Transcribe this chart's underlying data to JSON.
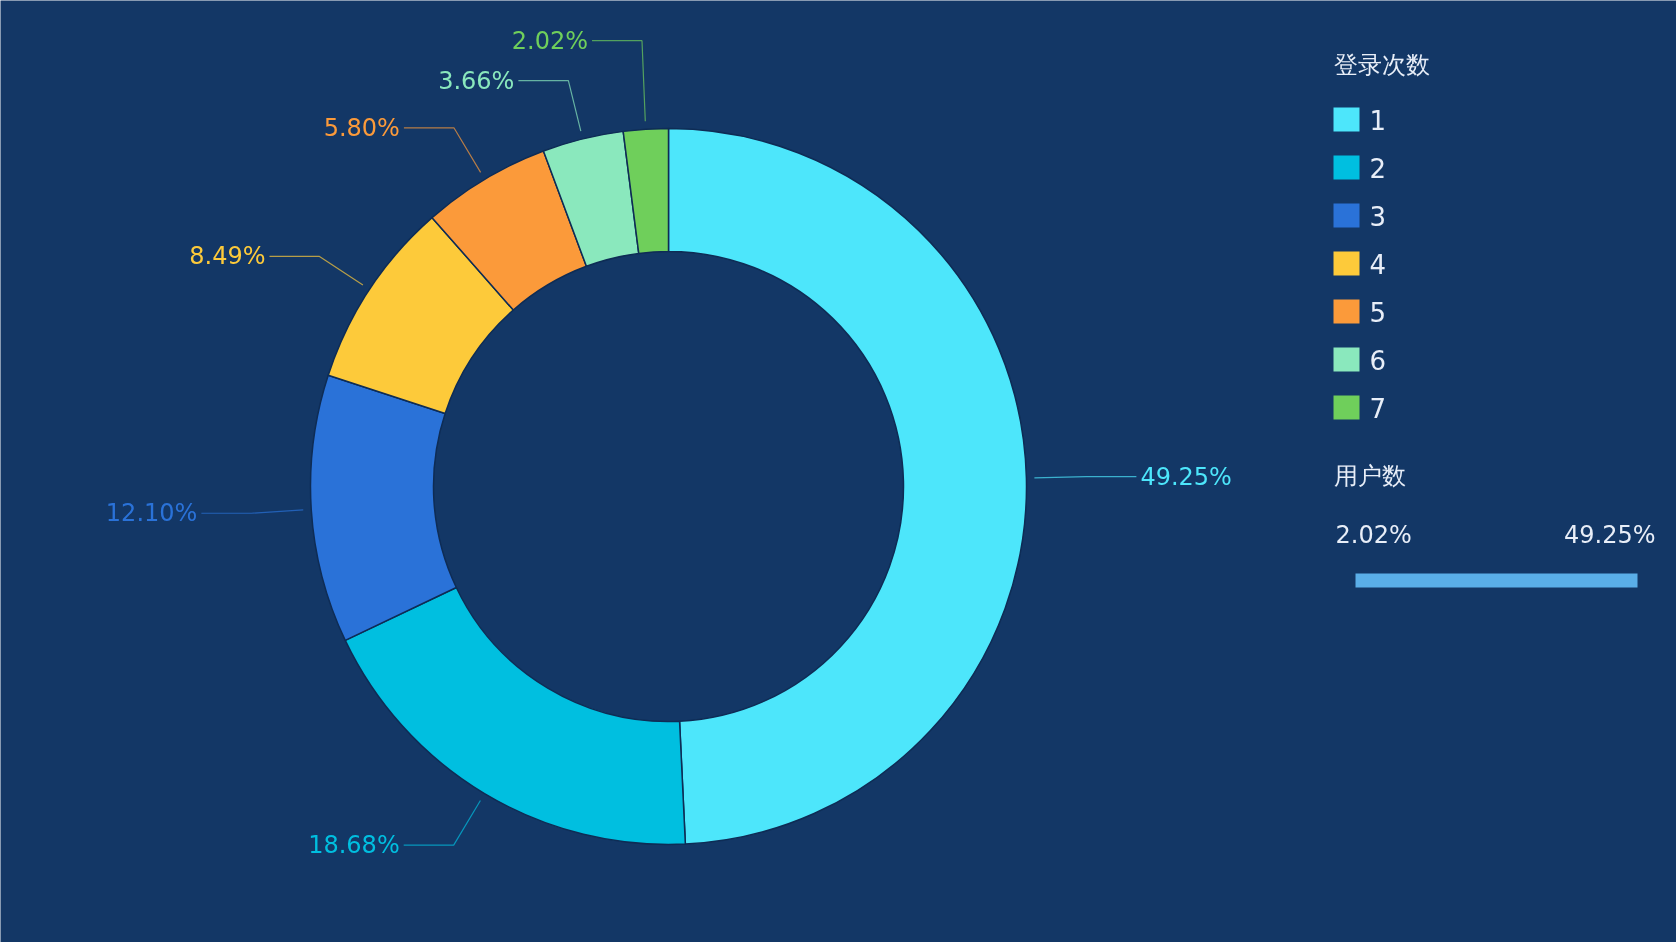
{
  "chart_data": {
    "type": "donut",
    "legend_title": "登录次数",
    "categories": [
      "1",
      "2",
      "3",
      "4",
      "5",
      "6",
      "7"
    ],
    "values": [
      49.25,
      18.68,
      12.1,
      8.49,
      5.8,
      3.66,
      2.02
    ],
    "colors": [
      "#4de6fb",
      "#00bfe0",
      "#2a72d8",
      "#fdca3a",
      "#fb9a3a",
      "#8ae8bd",
      "#6fcf5b"
    ],
    "value_labels": [
      "49.25%",
      "18.68%",
      "12.10%",
      "8.49%",
      "5.80%",
      "3.66%",
      "2.02%"
    ],
    "legend": "top right",
    "clabel": "用户数",
    "annotations": [
      "2.02%",
      "49.25%"
    ]
  }
}
